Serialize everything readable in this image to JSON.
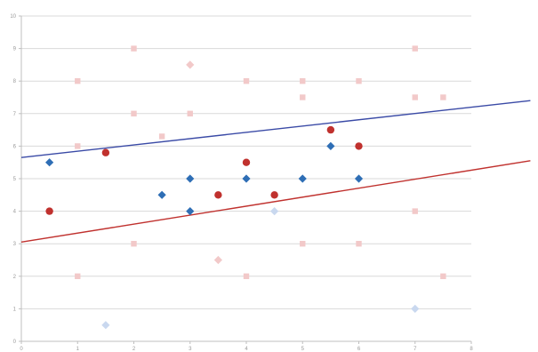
{
  "chart_data": {
    "type": "scatter",
    "title": "",
    "xlabel": "",
    "ylabel": "",
    "xlim": [
      0,
      8
    ],
    "ylim": [
      0,
      10
    ],
    "x_ticks": [
      "0",
      "1",
      "2",
      "3",
      "4",
      "5",
      "6",
      "7",
      "8"
    ],
    "y_ticks": [
      "0",
      "1",
      "2",
      "3",
      "4",
      "5",
      "6",
      "7",
      "8",
      "9",
      "10"
    ],
    "grid": "horizontal",
    "legend": "none",
    "series": [
      {
        "marker": "circle",
        "color": "#c0312e",
        "points": [
          [
            0.5,
            4.0
          ],
          [
            1.5,
            5.8
          ],
          [
            3.5,
            4.5
          ],
          [
            4.0,
            5.5
          ],
          [
            4.5,
            4.5
          ],
          [
            5.5,
            6.5
          ],
          [
            6.0,
            6.0
          ]
        ]
      },
      {
        "marker": "diamond",
        "color": "#2e6eb5",
        "points": [
          [
            0.5,
            5.5
          ],
          [
            2.5,
            4.5
          ],
          [
            3.0,
            5.0
          ],
          [
            3.0,
            4.0
          ],
          [
            4.0,
            5.0
          ],
          [
            5.0,
            5.0
          ],
          [
            5.5,
            6.0
          ],
          [
            6.0,
            5.0
          ]
        ]
      },
      {
        "marker": "square",
        "color": "#f2c9c9",
        "points": [
          [
            1.0,
            8.0
          ],
          [
            1.0,
            6.0
          ],
          [
            1.0,
            2.0
          ],
          [
            2.0,
            9.0
          ],
          [
            2.0,
            7.0
          ],
          [
            2.0,
            3.0
          ],
          [
            2.5,
            6.3
          ],
          [
            3.0,
            7.0
          ],
          [
            4.0,
            8.0
          ],
          [
            4.0,
            2.0
          ],
          [
            5.0,
            8.0
          ],
          [
            5.0,
            7.5
          ],
          [
            5.0,
            3.0
          ],
          [
            6.0,
            8.0
          ],
          [
            6.0,
            3.0
          ],
          [
            7.0,
            9.0
          ],
          [
            7.0,
            7.5
          ],
          [
            7.0,
            4.0
          ],
          [
            7.5,
            7.5
          ],
          [
            7.5,
            2.0
          ]
        ]
      },
      {
        "marker": "diamond",
        "color": "#f2c9c9",
        "points": [
          [
            3.0,
            8.5
          ],
          [
            3.5,
            2.5
          ]
        ]
      },
      {
        "marker": "diamond",
        "color": "#c9d8ef",
        "points": [
          [
            1.5,
            0.5
          ],
          [
            4.5,
            4.0
          ],
          [
            7.0,
            1.0
          ]
        ]
      }
    ],
    "trendlines": [
      {
        "color": "#3a4aa6",
        "from": [
          0,
          5.65
        ],
        "to": [
          9.05,
          7.4
        ]
      },
      {
        "color": "#c0312e",
        "from": [
          0,
          3.05
        ],
        "to": [
          9.05,
          5.55
        ]
      }
    ]
  }
}
